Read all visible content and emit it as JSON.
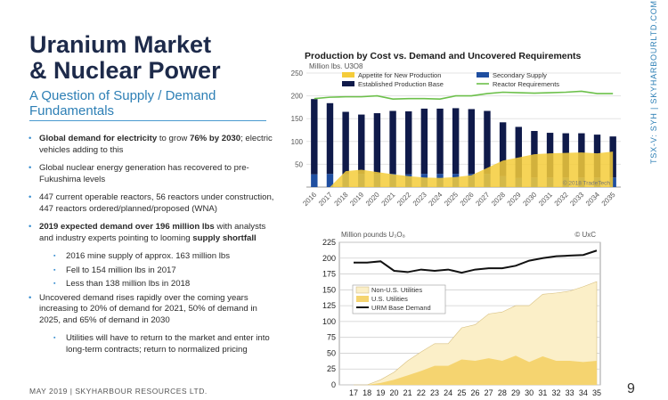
{
  "slide": {
    "title_line1": "Uranium Market",
    "title_line2": "& Nuclear Power",
    "subtitle": "A Question of Supply / Demand Fundamentals",
    "footer": "MAY 2019  |  SKYHARBOUR RESOURCES LTD.",
    "page_number": "9",
    "vertical_text": "TSX-V: SYH  |  SKYHARBOURLTD.COM"
  },
  "bullets": [
    {
      "bold": "Global demand for electricity",
      "text": " to grow ",
      "bold2": "76% by 2030",
      "text2": "; electric vehicles adding to this"
    },
    {
      "text": "Global nuclear energy generation has recovered to pre-Fukushima levels"
    },
    {
      "text": "447 current operable reactors, 56 reactors under construction, 447 reactors ordered/planned/proposed (WNA)"
    },
    {
      "bold": "2019 expected demand over 196 million lbs",
      "text": " with analysts and industry experts pointing to looming ",
      "bold2": "supply shortfall"
    },
    {
      "sub": true,
      "text": "2016 mine supply of approx. 163 million lbs"
    },
    {
      "sub": true,
      "text": "Fell to 154 million lbs in 2017"
    },
    {
      "sub": true,
      "text": "Less than 138 million lbs in 2018"
    },
    {
      "text": "Uncovered demand rises rapidly over the coming years increasing to 20% of demand for 2021, 50% of demand in 2025, and 65% of demand in 2030"
    },
    {
      "sub": true,
      "text": "Utilities will have to return to the market and enter into long-term contracts; return to normalized pricing"
    }
  ],
  "chart_data": [
    {
      "type": "bar",
      "title": "Production by Cost vs. Demand and Uncovered Requirements",
      "ylabel": "Million lbs. U3O8",
      "ylim": [
        0,
        250
      ],
      "yticks": [
        50,
        100,
        150,
        200,
        250
      ],
      "source": "© 2018 TradeTech",
      "categories": [
        "2016",
        "2017",
        "2018",
        "2019",
        "2020",
        "2021",
        "2022",
        "2023",
        "2024",
        "2025",
        "2026",
        "2027",
        "2028",
        "2029",
        "2030",
        "2031",
        "2032",
        "2033",
        "2034",
        "2035"
      ],
      "series": [
        {
          "name": "Established Production Base",
          "kind": "stacked-bar",
          "color": "#0f1a4a",
          "values": [
            165,
            155,
            137,
            130,
            133,
            138,
            138,
            143,
            143,
            144,
            142,
            138,
            118,
            112,
            102,
            98,
            97,
            97,
            94,
            90
          ]
        },
        {
          "name": "Secondary Supply",
          "kind": "stacked-bar",
          "color": "#1f4ea0",
          "values": [
            28,
            29,
            28,
            29,
            29,
            29,
            28,
            29,
            29,
            29,
            29,
            29,
            24,
            20,
            21,
            21,
            21,
            21,
            21,
            21
          ]
        },
        {
          "name": "Appetite for New Production",
          "kind": "area",
          "color": "#f5cc3a",
          "values": [
            0,
            0,
            35,
            38,
            33,
            28,
            24,
            21,
            20,
            22,
            26,
            42,
            58,
            65,
            72,
            74,
            75,
            76,
            74,
            78
          ]
        },
        {
          "name": "Reactor Requirements",
          "kind": "line",
          "color": "#6cc04a",
          "values": [
            194,
            197,
            198,
            198,
            200,
            193,
            194,
            194,
            193,
            200,
            200,
            205,
            208,
            207,
            206,
            207,
            208,
            210,
            205,
            205
          ]
        }
      ],
      "legend": "top"
    },
    {
      "type": "area",
      "ylabel": "Million pounds U₃O₈",
      "source": "© UxC",
      "ylim": [
        0,
        225
      ],
      "yticks": [
        0,
        25,
        50,
        75,
        100,
        125,
        150,
        175,
        200,
        225
      ],
      "categories": [
        "17",
        "18",
        "19",
        "20",
        "21",
        "22",
        "23",
        "24",
        "25",
        "26",
        "27",
        "28",
        "29",
        "30",
        "31",
        "32",
        "33",
        "34",
        "35"
      ],
      "series": [
        {
          "name": "Non-U.S. Utilities",
          "kind": "area",
          "color": "#fbefc8",
          "values": [
            0,
            0,
            8,
            20,
            38,
            52,
            65,
            65,
            90,
            95,
            112,
            115,
            125,
            125,
            143,
            145,
            148,
            155,
            163
          ]
        },
        {
          "name": "U.S. Utilities",
          "kind": "area",
          "color": "#f5d470",
          "values": [
            0,
            0,
            3,
            8,
            15,
            22,
            30,
            30,
            40,
            38,
            42,
            38,
            46,
            36,
            45,
            38,
            38,
            36,
            38
          ]
        },
        {
          "name": "URM Base Demand",
          "kind": "line",
          "color": "#111111",
          "values": [
            193,
            193,
            195,
            180,
            178,
            182,
            180,
            182,
            177,
            182,
            184,
            184,
            188,
            196,
            200,
            203,
            204,
            205,
            212
          ]
        }
      ],
      "legend": "left-middle"
    }
  ]
}
